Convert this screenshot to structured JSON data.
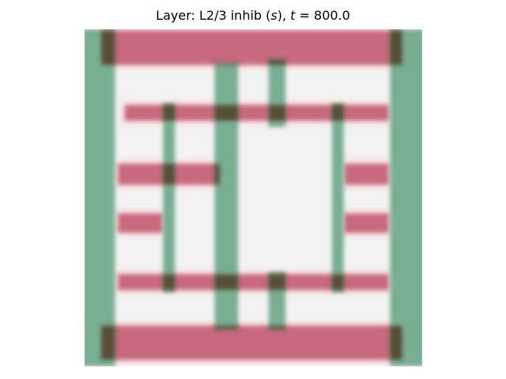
{
  "chart_data": {
    "type": "heatmap",
    "title": {
      "prefix": "Layer: L2/3 inhib (",
      "variable": "s",
      "middle": "), ",
      "time_symbol": "t",
      "equals": " = ",
      "time_value": "800.0"
    },
    "axes_visible": false,
    "grid": false,
    "xlim": [
      0,
      1
    ],
    "ylim": [
      0,
      1
    ],
    "colors": {
      "background": "#f3f3f3",
      "horizontal_band": "#c8697f",
      "vertical_band": "#6ea88a",
      "overlap": "#4d2a14",
      "halo": "#f2a6a0"
    },
    "horizontal_bands": [
      {
        "x": [
          0.05,
          0.94
        ],
        "y": 0.945,
        "thickness": 0.1
      },
      {
        "x": [
          0.12,
          0.9
        ],
        "y": 0.752,
        "thickness": 0.045
      },
      {
        "x": [
          0.1,
          0.4
        ],
        "y": 0.57,
        "thickness": 0.06
      },
      {
        "x": [
          0.77,
          0.9
        ],
        "y": 0.57,
        "thickness": 0.06
      },
      {
        "x": [
          0.1,
          0.23
        ],
        "y": 0.425,
        "thickness": 0.055
      },
      {
        "x": [
          0.77,
          0.9
        ],
        "y": 0.425,
        "thickness": 0.055
      },
      {
        "x": [
          0.1,
          0.9
        ],
        "y": 0.25,
        "thickness": 0.045
      },
      {
        "x": [
          0.05,
          0.94
        ],
        "y": 0.07,
        "thickness": 0.1
      }
    ],
    "vertical_bands": [
      {
        "x": 0.04,
        "y": [
          0.0,
          1.0
        ],
        "thickness": 0.1
      },
      {
        "x": 0.955,
        "y": [
          0.0,
          1.0
        ],
        "thickness": 0.1
      },
      {
        "x": 0.25,
        "y": [
          0.22,
          0.78
        ],
        "thickness": 0.035
      },
      {
        "x": 0.42,
        "y": [
          0.11,
          0.9
        ],
        "thickness": 0.07
      },
      {
        "x": 0.57,
        "y": [
          0.71,
          0.91
        ],
        "thickness": 0.05
      },
      {
        "x": 0.57,
        "y": [
          0.11,
          0.28
        ],
        "thickness": 0.05
      },
      {
        "x": 0.75,
        "y": [
          0.22,
          0.78
        ],
        "thickness": 0.035
      }
    ]
  }
}
